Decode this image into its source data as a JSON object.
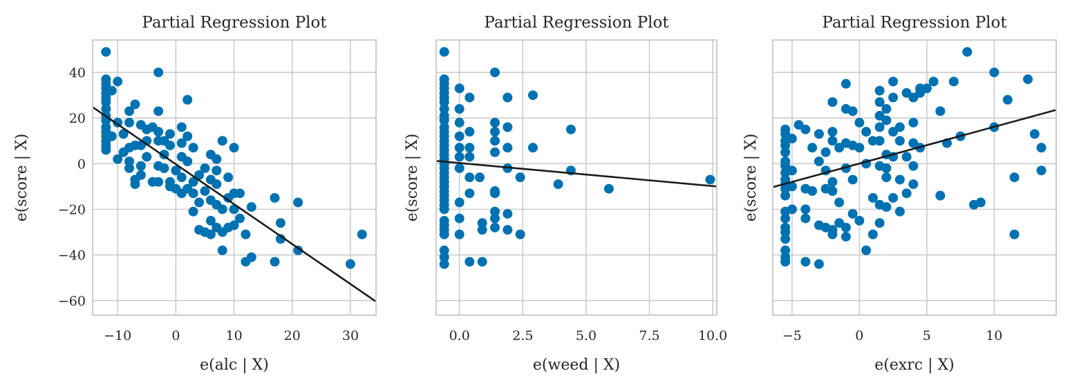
{
  "colors": {
    "point": "#0072b2",
    "line": "#1a1a1a",
    "grid": "#cccccc"
  },
  "chart_data": [
    {
      "type": "scatter",
      "title": "Partial Regression Plot",
      "xlabel": "e(alc | X)",
      "ylabel": "e(score | X)",
      "xlim": [
        -14.3,
        34.4
      ],
      "ylim": [
        -66.4,
        54.2
      ],
      "xticks": [
        -10,
        0,
        10,
        20,
        30
      ],
      "xtick_labels": [
        "−10",
        "0",
        "10",
        "20",
        "30"
      ],
      "yticks": [
        40,
        20,
        0,
        -20,
        -40,
        -60
      ],
      "ytick_labels": [
        "40",
        "20",
        "0",
        "−20",
        "−40",
        "−60"
      ],
      "show_yticklabels": true,
      "grid": true,
      "fit_line": {
        "intercept": -0.25,
        "slope": -1.75
      },
      "points": [
        [
          -12,
          49
        ],
        [
          -12,
          37
        ],
        [
          -12,
          35
        ],
        [
          -12,
          33
        ],
        [
          -12,
          31
        ],
        [
          -12,
          29
        ],
        [
          -12,
          27
        ],
        [
          -12,
          24
        ],
        [
          -12,
          21
        ],
        [
          -12,
          19
        ],
        [
          -12,
          16
        ],
        [
          -12,
          14
        ],
        [
          -12,
          12
        ],
        [
          -12,
          10
        ],
        [
          -12,
          8
        ],
        [
          -12,
          6
        ],
        [
          -11,
          32
        ],
        [
          -11,
          12
        ],
        [
          -10,
          36
        ],
        [
          -10,
          18
        ],
        [
          -10,
          2
        ],
        [
          -9,
          13
        ],
        [
          -9,
          5
        ],
        [
          -8,
          23
        ],
        [
          -8,
          18
        ],
        [
          -8,
          7
        ],
        [
          -8,
          1
        ],
        [
          -8,
          -2
        ],
        [
          -7,
          26
        ],
        [
          -7,
          8
        ],
        [
          -7,
          -7
        ],
        [
          -7,
          -9
        ],
        [
          -6,
          17
        ],
        [
          -6,
          8
        ],
        [
          -6,
          -1
        ],
        [
          -6,
          -5
        ],
        [
          -5,
          15
        ],
        [
          -5,
          10
        ],
        [
          -5,
          3
        ],
        [
          -4,
          16
        ],
        [
          -4,
          -8
        ],
        [
          -3,
          40
        ],
        [
          -3,
          23
        ],
        [
          -3,
          14
        ],
        [
          -3,
          10
        ],
        [
          -3,
          -1
        ],
        [
          -3,
          -8
        ],
        [
          -2,
          10
        ],
        [
          -2,
          4
        ],
        [
          -2,
          -2
        ],
        [
          -1,
          13
        ],
        [
          -1,
          8
        ],
        [
          -1,
          -8
        ],
        [
          -1,
          -10
        ],
        [
          0,
          -3
        ],
        [
          0,
          -11
        ],
        [
          1,
          16
        ],
        [
          1,
          9
        ],
        [
          1,
          3
        ],
        [
          1,
          -6
        ],
        [
          1,
          -13
        ],
        [
          2,
          28
        ],
        [
          2,
          12
        ],
        [
          2,
          1
        ],
        [
          2,
          -11
        ],
        [
          3,
          7
        ],
        [
          3,
          -8
        ],
        [
          3,
          -13
        ],
        [
          3,
          -21
        ],
        [
          4,
          -5
        ],
        [
          4,
          -17
        ],
        [
          4,
          -29
        ],
        [
          5,
          -2
        ],
        [
          5,
          -12
        ],
        [
          5,
          -30
        ],
        [
          6,
          4
        ],
        [
          6,
          -7
        ],
        [
          6,
          -16
        ],
        [
          6,
          -25
        ],
        [
          6,
          -31
        ],
        [
          7,
          2
        ],
        [
          7,
          -3
        ],
        [
          7,
          -9
        ],
        [
          7,
          -18
        ],
        [
          7,
          -28
        ],
        [
          8,
          10
        ],
        [
          8,
          -20
        ],
        [
          8,
          -30
        ],
        [
          8,
          -38
        ],
        [
          9,
          -6
        ],
        [
          9,
          -15
        ],
        [
          9,
          -28
        ],
        [
          10,
          7
        ],
        [
          10,
          -13
        ],
        [
          10,
          -20
        ],
        [
          10,
          -27
        ],
        [
          11,
          -13
        ],
        [
          11,
          -24
        ],
        [
          12,
          -31
        ],
        [
          12,
          -43
        ],
        [
          13,
          -19
        ],
        [
          13,
          -41
        ],
        [
          17,
          -15
        ],
        [
          17,
          -43
        ],
        [
          18,
          -26
        ],
        [
          18,
          -33
        ],
        [
          21,
          -17
        ],
        [
          21,
          -38
        ],
        [
          30,
          -44
        ],
        [
          32,
          -31
        ]
      ]
    },
    {
      "type": "scatter",
      "title": "Partial Regression Plot",
      "xlabel": "e(weed | X)",
      "ylabel": "e(score | X)",
      "xlim": [
        -0.92,
        10.16
      ],
      "ylim": [
        -66.4,
        54.2
      ],
      "xticks": [
        0,
        2.5,
        5,
        7.5,
        10
      ],
      "xtick_labels": [
        "0.0",
        "2.5",
        "5.0",
        "7.5",
        "10.0"
      ],
      "yticks": [
        40,
        20,
        0,
        -20,
        -40,
        -60
      ],
      "show_yticklabels": false,
      "grid": true,
      "fit_line": {
        "intercept": 0.27,
        "slope": -1.01
      },
      "points": [
        [
          -0.6,
          49
        ],
        [
          -0.6,
          37
        ],
        [
          -0.6,
          35
        ],
        [
          -0.6,
          33
        ],
        [
          -0.6,
          31
        ],
        [
          -0.6,
          29
        ],
        [
          -0.6,
          27
        ],
        [
          -0.6,
          24
        ],
        [
          -0.6,
          21
        ],
        [
          -0.6,
          19
        ],
        [
          -0.6,
          16
        ],
        [
          -0.6,
          14
        ],
        [
          -0.6,
          12
        ],
        [
          -0.6,
          10
        ],
        [
          -0.6,
          8
        ],
        [
          -0.6,
          6
        ],
        [
          -0.6,
          4
        ],
        [
          -0.6,
          2
        ],
        [
          -0.6,
          0
        ],
        [
          -0.6,
          -2
        ],
        [
          -0.6,
          -4
        ],
        [
          -0.6,
          -6
        ],
        [
          -0.6,
          -8
        ],
        [
          -0.6,
          -10
        ],
        [
          -0.6,
          -12
        ],
        [
          -0.6,
          -14
        ],
        [
          -0.6,
          -16
        ],
        [
          -0.6,
          -18
        ],
        [
          -0.6,
          -20
        ],
        [
          -0.6,
          -25
        ],
        [
          -0.6,
          -27
        ],
        [
          -0.6,
          -29
        ],
        [
          -0.6,
          -31
        ],
        [
          -0.6,
          -38
        ],
        [
          -0.6,
          -41
        ],
        [
          -0.6,
          -44
        ],
        [
          0,
          33
        ],
        [
          0,
          24
        ],
        [
          0,
          18
        ],
        [
          0,
          12
        ],
        [
          0,
          7
        ],
        [
          0,
          3
        ],
        [
          0,
          -2
        ],
        [
          0,
          -17
        ],
        [
          0,
          -24
        ],
        [
          0,
          -31
        ],
        [
          0.4,
          29
        ],
        [
          0.4,
          14
        ],
        [
          0.4,
          7
        ],
        [
          0.4,
          3
        ],
        [
          0.4,
          -6
        ],
        [
          0.4,
          -13
        ],
        [
          0.4,
          -43
        ],
        [
          0.8,
          -6
        ],
        [
          0.9,
          -26
        ],
        [
          0.9,
          -29
        ],
        [
          0.9,
          -43
        ],
        [
          1.4,
          40
        ],
        [
          1.4,
          18
        ],
        [
          1.4,
          14
        ],
        [
          1.4,
          10
        ],
        [
          1.4,
          5
        ],
        [
          1.4,
          -12
        ],
        [
          1.4,
          -13
        ],
        [
          1.4,
          -21
        ],
        [
          1.4,
          -24
        ],
        [
          1.4,
          -28
        ],
        [
          1.9,
          29
        ],
        [
          1.9,
          16
        ],
        [
          1.9,
          7
        ],
        [
          1.9,
          -2
        ],
        [
          1.9,
          -22
        ],
        [
          1.9,
          -29
        ],
        [
          2.4,
          -6
        ],
        [
          2.4,
          -31
        ],
        [
          2.9,
          30
        ],
        [
          2.9,
          7
        ],
        [
          3.9,
          -9
        ],
        [
          4.4,
          15
        ],
        [
          4.4,
          -3
        ],
        [
          5.9,
          -11
        ],
        [
          9.9,
          -7
        ]
      ]
    },
    {
      "type": "scatter",
      "title": "Partial Regression Plot",
      "xlabel": "e(exrc | X)",
      "ylabel": "e(score | X)",
      "xlim": [
        -6.43,
        14.6
      ],
      "ylim": [
        -66.4,
        54.2
      ],
      "xticks": [
        -5,
        0,
        5,
        10
      ],
      "xtick_labels": [
        "−5",
        "0",
        "5",
        "10"
      ],
      "yticks": [
        40,
        20,
        0,
        -20,
        -40,
        -60
      ],
      "show_yticklabels": false,
      "grid": true,
      "fit_line": {
        "intercept": 0.05,
        "slope": 1.61
      },
      "points": [
        [
          -5.5,
          15
        ],
        [
          -5.5,
          13
        ],
        [
          -5.5,
          10
        ],
        [
          -5.5,
          8
        ],
        [
          -5.5,
          5
        ],
        [
          -5.5,
          1
        ],
        [
          -5.5,
          -1
        ],
        [
          -5.5,
          -4
        ],
        [
          -5.5,
          -7
        ],
        [
          -5.5,
          -9
        ],
        [
          -5.5,
          -11
        ],
        [
          -5.5,
          -14
        ],
        [
          -5.5,
          -21
        ],
        [
          -5.5,
          -24
        ],
        [
          -5.5,
          -28
        ],
        [
          -5.5,
          -30
        ],
        [
          -5.5,
          -33
        ],
        [
          -5.5,
          -38
        ],
        [
          -5.5,
          -41
        ],
        [
          -5.5,
          -43
        ],
        [
          -5,
          11
        ],
        [
          -5,
          -3
        ],
        [
          -5,
          -10
        ],
        [
          -5,
          -20
        ],
        [
          -4.5,
          17
        ],
        [
          -4,
          15
        ],
        [
          -4,
          -11
        ],
        [
          -4,
          -20
        ],
        [
          -4,
          -24
        ],
        [
          -4,
          -43
        ],
        [
          -3.5,
          7
        ],
        [
          -3.5,
          -12
        ],
        [
          -3,
          13
        ],
        [
          -3,
          1
        ],
        [
          -3,
          -27
        ],
        [
          -3,
          -44
        ],
        [
          -2.5,
          5
        ],
        [
          -2.5,
          -3
        ],
        [
          -2.5,
          -11
        ],
        [
          -2.5,
          -28
        ],
        [
          -2,
          27
        ],
        [
          -2,
          14
        ],
        [
          -2,
          10
        ],
        [
          -2,
          -8
        ],
        [
          -2,
          -12
        ],
        [
          -2,
          -29
        ],
        [
          -2,
          -31
        ],
        [
          -1.5,
          7
        ],
        [
          -1.5,
          -17
        ],
        [
          -1.5,
          -26
        ],
        [
          -1,
          35
        ],
        [
          -1,
          24
        ],
        [
          -1,
          9
        ],
        [
          -1,
          -2
        ],
        [
          -1,
          -28
        ],
        [
          -1,
          -32
        ],
        [
          -0.5,
          23
        ],
        [
          -0.5,
          8
        ],
        [
          -0.5,
          -7
        ],
        [
          -0.5,
          -22
        ],
        [
          0,
          18
        ],
        [
          0,
          7
        ],
        [
          0,
          -25
        ],
        [
          0.5,
          14
        ],
        [
          0.5,
          0
        ],
        [
          0.5,
          -38
        ],
        [
          1,
          10
        ],
        [
          1,
          -15
        ],
        [
          1,
          -31
        ],
        [
          1.5,
          32
        ],
        [
          1.5,
          27
        ],
        [
          1.5,
          21
        ],
        [
          1.5,
          16
        ],
        [
          1.5,
          10
        ],
        [
          1.5,
          -1
        ],
        [
          1.5,
          -18
        ],
        [
          1.5,
          -26
        ],
        [
          2,
          24
        ],
        [
          2,
          19
        ],
        [
          2,
          4
        ],
        [
          2,
          -2
        ],
        [
          2,
          -6
        ],
        [
          2,
          -19
        ],
        [
          2.5,
          36
        ],
        [
          2.5,
          29
        ],
        [
          2.5,
          14
        ],
        [
          2.5,
          3
        ],
        [
          2.5,
          -15
        ],
        [
          3,
          16
        ],
        [
          3,
          10
        ],
        [
          3,
          -7
        ],
        [
          3,
          -21
        ],
        [
          3.5,
          31
        ],
        [
          3.5,
          3
        ],
        [
          3.5,
          -13
        ],
        [
          4,
          29
        ],
        [
          4,
          18
        ],
        [
          4,
          9
        ],
        [
          4,
          -1
        ],
        [
          4,
          -9
        ],
        [
          4.5,
          33
        ],
        [
          4.5,
          31
        ],
        [
          4.5,
          7
        ],
        [
          5,
          33
        ],
        [
          5.5,
          36
        ],
        [
          6,
          23
        ],
        [
          6,
          -14
        ],
        [
          6.5,
          9
        ],
        [
          7,
          36
        ],
        [
          7.5,
          12
        ],
        [
          8,
          49
        ],
        [
          8.5,
          -18
        ],
        [
          9,
          -17
        ],
        [
          10,
          40
        ],
        [
          10,
          16
        ],
        [
          11,
          28
        ],
        [
          11.5,
          -6
        ],
        [
          11.5,
          -31
        ],
        [
          12.5,
          37
        ],
        [
          13,
          13
        ],
        [
          13.5,
          7
        ],
        [
          13.5,
          -3
        ]
      ]
    }
  ]
}
